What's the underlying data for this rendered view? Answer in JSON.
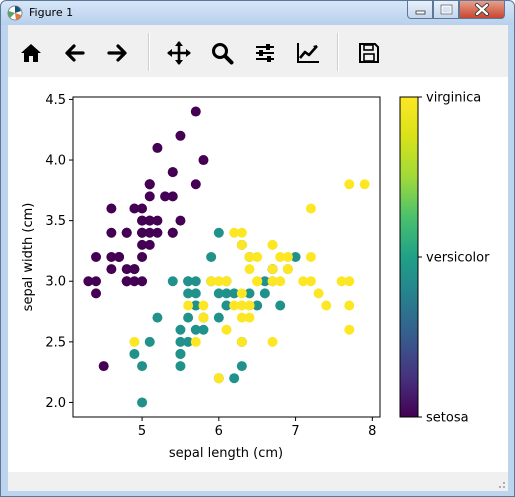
{
  "window": {
    "title": "Figure 1",
    "controls": {
      "minimize_icon": "minimize-icon",
      "maximize_icon": "maximize-icon",
      "close_icon": "close-icon"
    }
  },
  "toolbar": {
    "icons": [
      "home-icon",
      "back-arrow-icon",
      "forward-arrow-icon",
      "pan-move-icon",
      "zoom-magnifier-icon",
      "configure-subplots-icon",
      "edit-axis-icon",
      "save-disk-icon"
    ]
  },
  "colors": {
    "setosa": "#440154",
    "versicolor": "#21918c",
    "virginica": "#fde725",
    "window_frame": "#bcd4ee",
    "close_button": "#c7452d"
  },
  "chart_data": {
    "type": "scatter",
    "xlabel": "sepal length (cm)",
    "ylabel": "sepal width (cm)",
    "xlim": [
      4.1,
      8.1
    ],
    "ylim": [
      1.88,
      4.52
    ],
    "xticks": [
      5,
      6,
      7,
      8
    ],
    "yticks": [
      2.0,
      2.5,
      3.0,
      3.5,
      4.0,
      4.5
    ],
    "xtick_labels": [
      "5",
      "6",
      "7",
      "8"
    ],
    "ytick_labels": [
      "2.0",
      "2.5",
      "3.0",
      "3.5",
      "4.0",
      "4.5"
    ],
    "colorbar": {
      "position": "right",
      "colormap": "viridis",
      "labels": [
        "setosa",
        "versicolor",
        "virginica"
      ]
    },
    "grid": false,
    "series": [
      {
        "name": "setosa",
        "color": "#440154",
        "points": [
          [
            5.1,
            3.5
          ],
          [
            4.9,
            3.0
          ],
          [
            4.7,
            3.2
          ],
          [
            4.6,
            3.1
          ],
          [
            5.0,
            3.6
          ],
          [
            5.4,
            3.9
          ],
          [
            4.6,
            3.4
          ],
          [
            5.0,
            3.4
          ],
          [
            4.4,
            2.9
          ],
          [
            4.9,
            3.1
          ],
          [
            5.4,
            3.7
          ],
          [
            4.8,
            3.4
          ],
          [
            4.8,
            3.0
          ],
          [
            4.3,
            3.0
          ],
          [
            5.8,
            4.0
          ],
          [
            5.7,
            4.4
          ],
          [
            5.4,
            3.9
          ],
          [
            5.1,
            3.5
          ],
          [
            5.7,
            3.8
          ],
          [
            5.1,
            3.8
          ],
          [
            5.4,
            3.4
          ],
          [
            5.1,
            3.7
          ],
          [
            4.6,
            3.6
          ],
          [
            5.1,
            3.3
          ],
          [
            4.8,
            3.4
          ],
          [
            5.0,
            3.0
          ],
          [
            5.0,
            3.4
          ],
          [
            5.2,
            3.5
          ],
          [
            5.2,
            3.4
          ],
          [
            4.7,
            3.2
          ],
          [
            4.8,
            3.1
          ],
          [
            5.4,
            3.4
          ],
          [
            5.2,
            4.1
          ],
          [
            5.5,
            4.2
          ],
          [
            4.9,
            3.1
          ],
          [
            5.0,
            3.2
          ],
          [
            5.5,
            3.5
          ],
          [
            4.9,
            3.6
          ],
          [
            4.4,
            3.0
          ],
          [
            5.1,
            3.4
          ],
          [
            5.0,
            3.5
          ],
          [
            4.5,
            2.3
          ],
          [
            4.4,
            3.2
          ],
          [
            5.0,
            3.5
          ],
          [
            5.1,
            3.8
          ],
          [
            4.8,
            3.0
          ],
          [
            5.1,
            3.8
          ],
          [
            4.6,
            3.2
          ],
          [
            5.3,
            3.7
          ],
          [
            5.0,
            3.3
          ]
        ]
      },
      {
        "name": "versicolor",
        "color": "#21918c",
        "points": [
          [
            7.0,
            3.2
          ],
          [
            6.4,
            3.2
          ],
          [
            6.9,
            3.1
          ],
          [
            5.5,
            2.3
          ],
          [
            6.5,
            2.8
          ],
          [
            5.7,
            2.8
          ],
          [
            6.3,
            3.3
          ],
          [
            4.9,
            2.4
          ],
          [
            6.6,
            2.9
          ],
          [
            5.2,
            2.7
          ],
          [
            5.0,
            2.0
          ],
          [
            5.9,
            3.0
          ],
          [
            6.0,
            2.2
          ],
          [
            6.1,
            2.9
          ],
          [
            5.6,
            2.9
          ],
          [
            6.7,
            3.1
          ],
          [
            5.6,
            3.0
          ],
          [
            5.8,
            2.7
          ],
          [
            6.2,
            2.2
          ],
          [
            5.6,
            2.5
          ],
          [
            5.9,
            3.2
          ],
          [
            6.1,
            2.8
          ],
          [
            6.3,
            2.5
          ],
          [
            6.1,
            2.8
          ],
          [
            6.4,
            2.9
          ],
          [
            6.6,
            3.0
          ],
          [
            6.8,
            2.8
          ],
          [
            6.7,
            3.0
          ],
          [
            6.0,
            2.9
          ],
          [
            5.7,
            2.6
          ],
          [
            5.5,
            2.4
          ],
          [
            5.5,
            2.4
          ],
          [
            5.8,
            2.7
          ],
          [
            6.0,
            2.7
          ],
          [
            5.4,
            3.0
          ],
          [
            6.0,
            3.4
          ],
          [
            6.7,
            3.1
          ],
          [
            6.3,
            2.3
          ],
          [
            5.6,
            3.0
          ],
          [
            5.5,
            2.5
          ],
          [
            5.5,
            2.6
          ],
          [
            6.1,
            3.0
          ],
          [
            5.8,
            2.6
          ],
          [
            5.0,
            2.3
          ],
          [
            5.6,
            2.7
          ],
          [
            5.7,
            3.0
          ],
          [
            5.7,
            2.9
          ],
          [
            6.2,
            2.9
          ],
          [
            5.1,
            2.5
          ],
          [
            5.7,
            2.8
          ]
        ]
      },
      {
        "name": "virginica",
        "color": "#fde725",
        "points": [
          [
            6.3,
            3.3
          ],
          [
            5.8,
            2.7
          ],
          [
            7.1,
            3.0
          ],
          [
            6.3,
            2.9
          ],
          [
            6.5,
            3.0
          ],
          [
            7.6,
            3.0
          ],
          [
            4.9,
            2.5
          ],
          [
            7.3,
            2.9
          ],
          [
            6.7,
            2.5
          ],
          [
            7.2,
            3.6
          ],
          [
            6.5,
            3.2
          ],
          [
            6.4,
            2.7
          ],
          [
            6.8,
            3.0
          ],
          [
            5.7,
            2.5
          ],
          [
            5.8,
            2.8
          ],
          [
            6.4,
            3.2
          ],
          [
            6.5,
            3.0
          ],
          [
            7.7,
            3.8
          ],
          [
            7.7,
            2.6
          ],
          [
            6.0,
            2.2
          ],
          [
            6.9,
            3.2
          ],
          [
            5.6,
            2.8
          ],
          [
            7.7,
            2.8
          ],
          [
            6.3,
            2.7
          ],
          [
            6.7,
            3.3
          ],
          [
            7.2,
            3.2
          ],
          [
            6.2,
            2.8
          ],
          [
            6.1,
            3.0
          ],
          [
            6.4,
            2.8
          ],
          [
            7.2,
            3.0
          ],
          [
            7.4,
            2.8
          ],
          [
            7.9,
            3.8
          ],
          [
            6.4,
            2.8
          ],
          [
            6.3,
            2.8
          ],
          [
            6.1,
            2.6
          ],
          [
            7.7,
            3.0
          ],
          [
            6.3,
            3.4
          ],
          [
            6.4,
            3.1
          ],
          [
            6.0,
            3.0
          ],
          [
            6.9,
            3.1
          ],
          [
            6.7,
            3.1
          ],
          [
            6.9,
            3.1
          ],
          [
            5.8,
            2.7
          ],
          [
            6.8,
            3.2
          ],
          [
            6.7,
            3.3
          ],
          [
            6.7,
            3.0
          ],
          [
            6.3,
            2.5
          ],
          [
            6.5,
            3.0
          ],
          [
            6.2,
            3.4
          ],
          [
            5.9,
            3.0
          ]
        ]
      }
    ]
  }
}
